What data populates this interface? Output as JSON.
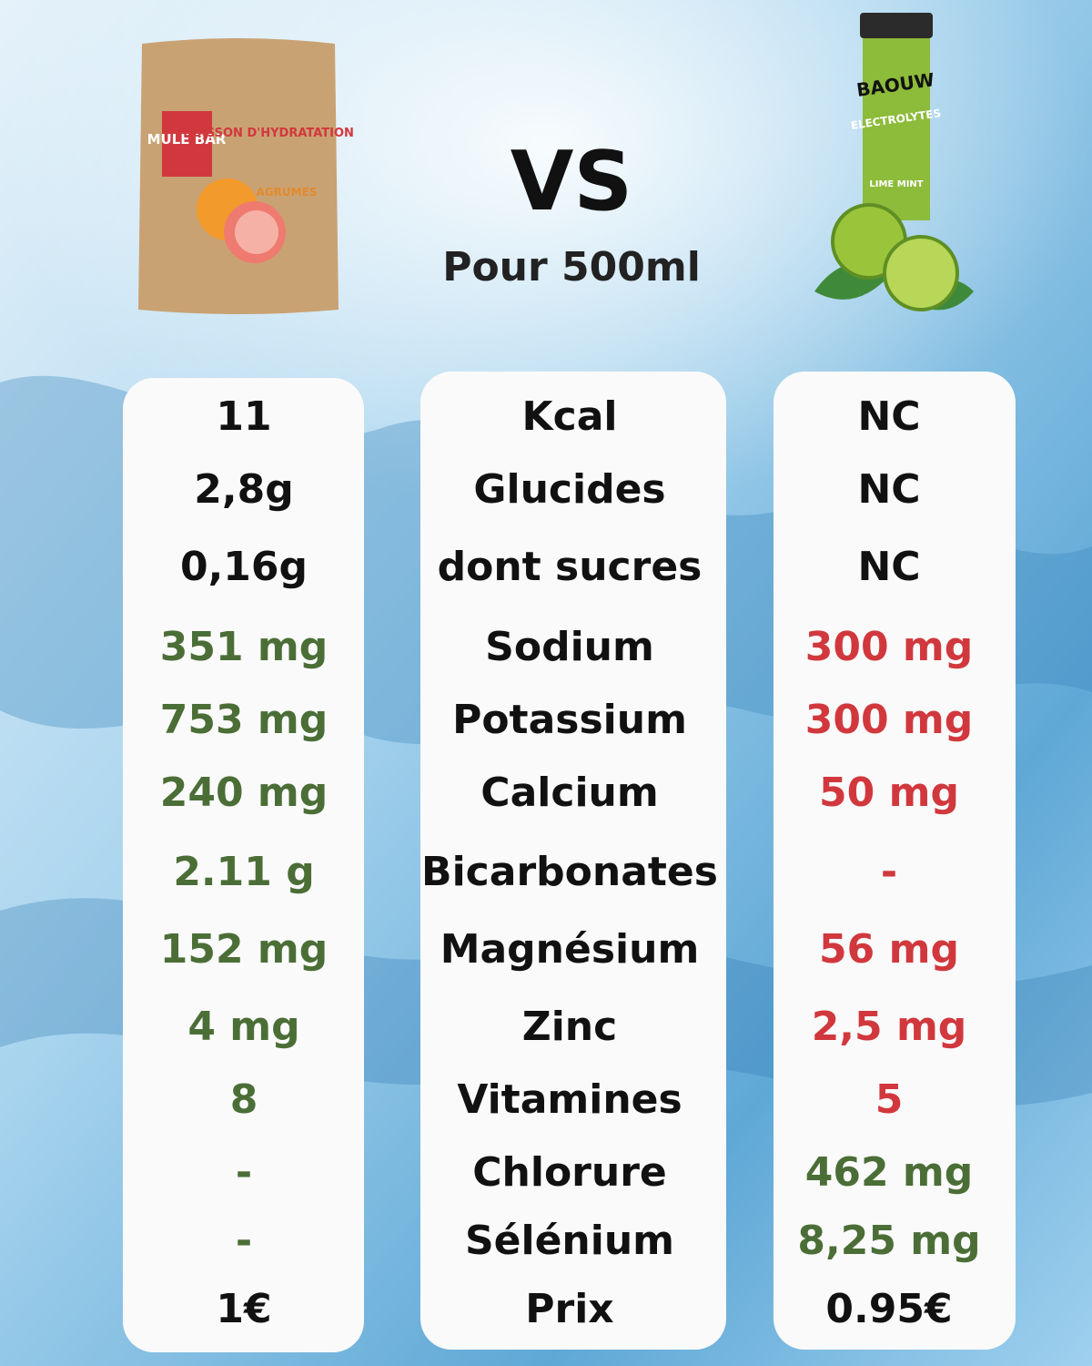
{
  "title": "VS",
  "subtitle": "Pour 500ml",
  "products": {
    "left": {
      "brand": "MULE BAR",
      "name": "BOISSON D'HYDRATATION",
      "flavor": "AGRUMES"
    },
    "right": {
      "brand": "BAOUW",
      "name": "ELECTROLYTES",
      "flavor": "LIME MINT"
    }
  },
  "rows": [
    {
      "left": "11",
      "label": "Kcal",
      "right": "NC",
      "left_color": "#111111",
      "right_color": "#111111"
    },
    {
      "left": "2,8g",
      "label": "Glucides",
      "right": "NC",
      "left_color": "#111111",
      "right_color": "#111111"
    },
    {
      "left": "0,16g",
      "label": "dont sucres",
      "right": "NC",
      "left_color": "#111111",
      "right_color": "#111111"
    },
    {
      "left": "351 mg",
      "label": "Sodium",
      "right": "300 mg",
      "left_color": "#4b6e37",
      "right_color": "#d1383d"
    },
    {
      "left": "753 mg",
      "label": "Potassium",
      "right": "300 mg",
      "left_color": "#4b6e37",
      "right_color": "#d1383d"
    },
    {
      "left": "240 mg",
      "label": "Calcium",
      "right": "50 mg",
      "left_color": "#4b6e37",
      "right_color": "#d1383d"
    },
    {
      "left": "2.11 g",
      "label": "Bicarbonates",
      "right": "-",
      "left_color": "#4b6e37",
      "right_color": "#d1383d"
    },
    {
      "left": "152 mg",
      "label": "Magnésium",
      "right": "56 mg",
      "left_color": "#4b6e37",
      "right_color": "#d1383d"
    },
    {
      "left": "4 mg",
      "label": "Zinc",
      "right": "2,5 mg",
      "left_color": "#4b6e37",
      "right_color": "#d1383d"
    },
    {
      "left": "8",
      "label": "Vitamines",
      "right": "5",
      "left_color": "#4b6e37",
      "right_color": "#d1383d"
    },
    {
      "left": "-",
      "label": "Chlorure",
      "right": "462 mg",
      "left_color": "#4b6e37",
      "right_color": "#4b6e37"
    },
    {
      "left": "-",
      "label": "Sélénium",
      "right": "8,25 mg",
      "left_color": "#4b6e37",
      "right_color": "#4b6e37"
    },
    {
      "left": "1€",
      "label": "Prix",
      "right": "0.95€",
      "left_color": "#111111",
      "right_color": "#111111"
    }
  ]
}
